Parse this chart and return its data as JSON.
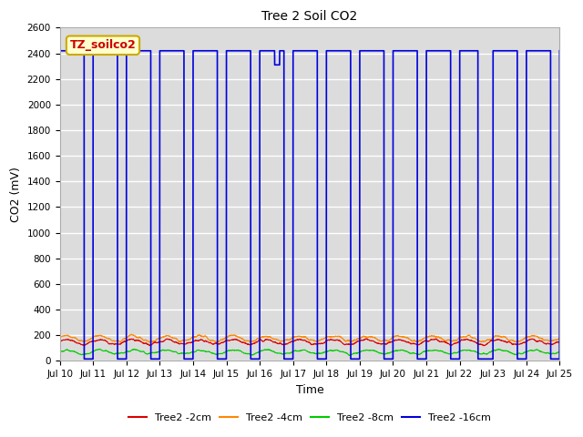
{
  "title": "Tree 2 Soil CO2",
  "xlabel": "Time",
  "ylabel": "CO2 (mV)",
  "ylim": [
    0,
    2600
  ],
  "yticks": [
    0,
    200,
    400,
    600,
    800,
    1000,
    1200,
    1400,
    1600,
    1800,
    2000,
    2200,
    2400,
    2600
  ],
  "xlim_start": 10,
  "xlim_end": 25,
  "xtick_labels": [
    "Jul 10",
    "Jul 11",
    "Jul 12",
    "Jul 13",
    "Jul 14",
    "Jul 15",
    "Jul 16",
    "Jul 17",
    "Jul 18",
    "Jul 19",
    "Jul 20",
    "Jul 21",
    "Jul 22",
    "Jul 23",
    "Jul 24",
    "Jul 25"
  ],
  "fig_bg_color": "#ffffff",
  "plot_bg_color": "#dcdcdc",
  "grid_color": "#ffffff",
  "annotation_text": "TZ_soilco2",
  "annotation_bg": "#ffffcc",
  "annotation_border": "#ccaa00",
  "series": [
    {
      "name": "Tree2 -2cm",
      "color": "#dd0000"
    },
    {
      "name": "Tree2 -4cm",
      "color": "#ff8800"
    },
    {
      "name": "Tree2 -8cm",
      "color": "#00cc00"
    },
    {
      "name": "Tree2 -16cm",
      "color": "#0000dd"
    }
  ]
}
